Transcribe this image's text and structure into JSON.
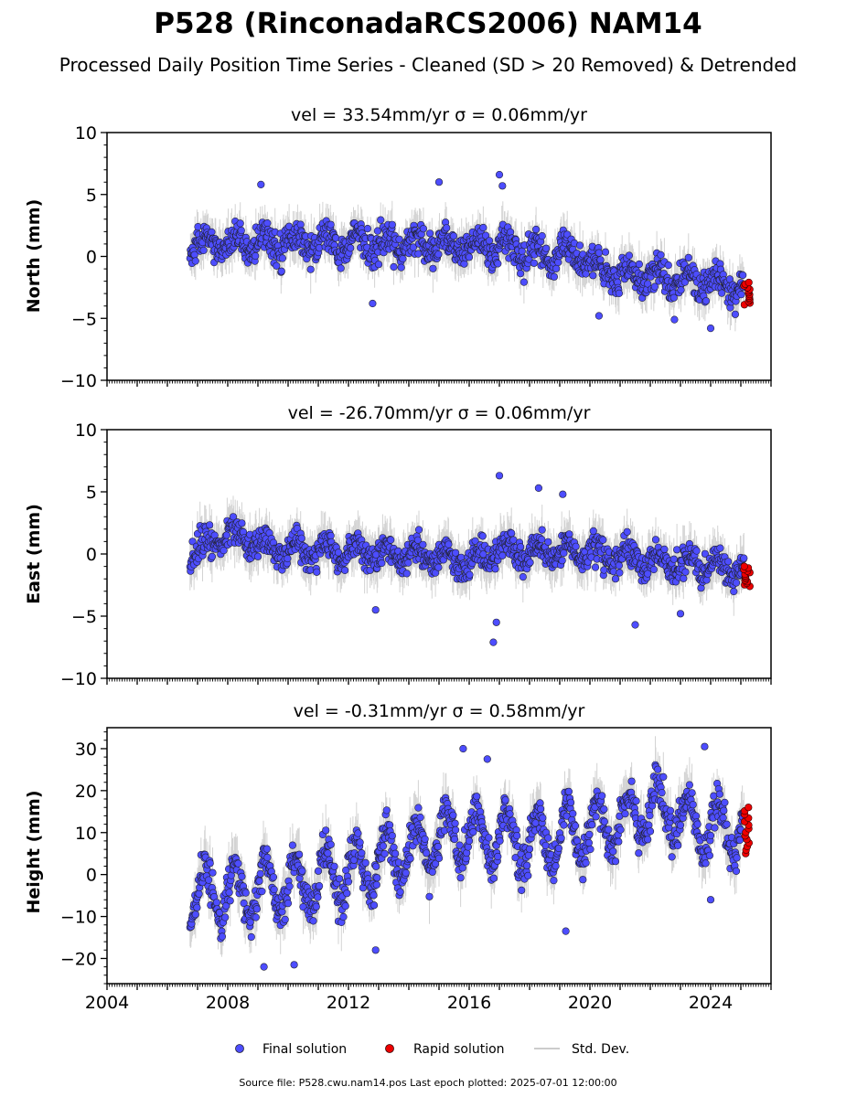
{
  "title": "P528 (RinconadaRCS2006) NAM14",
  "subtitle": "Processed Daily Position Time Series - Cleaned (SD > 20 Removed) & Detrended",
  "footer": "Source file: P528.cwu.nam14.pos  Last epoch plotted: 2025-07-01 12:00:00",
  "legend": {
    "final": "Final solution",
    "rapid": "Rapid solution",
    "sd": "Std. Dev."
  },
  "colors": {
    "final": "#4d4dff",
    "rapid": "#ee0000",
    "sd": "#808080",
    "marker_edge": "#222233"
  },
  "chart_data": [
    {
      "type": "scatter",
      "id": "north",
      "title": "vel = 33.54mm/yr   σ = 0.06mm/yr",
      "ylabel": "North (mm)",
      "xlim": [
        2004,
        2026
      ],
      "ylim": [
        -10,
        10
      ],
      "yticks": [
        -10,
        -5,
        0,
        5,
        10
      ],
      "xticks": [],
      "x_start": 2006.75,
      "x_end": 2025.3,
      "trend": [
        [
          2006.75,
          1.0
        ],
        [
          2012.0,
          1.1
        ],
        [
          2016.0,
          0.8
        ],
        [
          2019.8,
          0.0
        ],
        [
          2020.2,
          -1.2
        ],
        [
          2023.0,
          -1.8
        ],
        [
          2025.3,
          -2.6
        ]
      ],
      "seasonal_amp": 0.7,
      "noise": 0.9,
      "sd": 1.4,
      "outliers": [
        [
          2009.1,
          5.8
        ],
        [
          2015.0,
          6.0
        ],
        [
          2017.0,
          6.6
        ],
        [
          2017.1,
          5.7
        ],
        [
          2012.8,
          -3.8
        ],
        [
          2020.3,
          -4.8
        ],
        [
          2022.8,
          -5.1
        ],
        [
          2024.0,
          -5.8
        ]
      ],
      "rapid": {
        "x_start": 2025.1,
        "x_end": 2025.3,
        "y_min": -3.9,
        "y_max": -2.1
      }
    },
    {
      "type": "scatter",
      "id": "east",
      "title": "vel = -26.70mm/yr   σ = 0.06mm/yr",
      "ylabel": "East (mm)",
      "xlim": [
        2004,
        2026
      ],
      "ylim": [
        -10,
        10
      ],
      "yticks": [
        -10,
        -5,
        0,
        5,
        10
      ],
      "xticks": [],
      "x_start": 2006.75,
      "x_end": 2025.3,
      "trend": [
        [
          2006.75,
          0.0
        ],
        [
          2008.0,
          1.5
        ],
        [
          2010.0,
          0.3
        ],
        [
          2014.0,
          0.0
        ],
        [
          2016.0,
          -0.6
        ],
        [
          2017.3,
          0.4
        ],
        [
          2020.0,
          0.0
        ],
        [
          2025.3,
          -1.3
        ]
      ],
      "seasonal_amp": 0.7,
      "noise": 0.8,
      "sd": 1.5,
      "outliers": [
        [
          2017.0,
          6.3
        ],
        [
          2018.3,
          5.3
        ],
        [
          2019.1,
          4.8
        ],
        [
          2016.8,
          -7.1
        ],
        [
          2016.9,
          -5.5
        ],
        [
          2012.9,
          -4.5
        ],
        [
          2021.5,
          -5.7
        ],
        [
          2023.0,
          -4.8
        ]
      ],
      "rapid": {
        "x_start": 2025.1,
        "x_end": 2025.3,
        "y_min": -2.6,
        "y_max": -1.0
      }
    },
    {
      "type": "scatter",
      "id": "height",
      "title": "vel = -0.31mm/yr   σ = 0.58mm/yr",
      "ylabel": "Height (mm)",
      "xlim": [
        2004,
        2026
      ],
      "ylim": [
        -26,
        35
      ],
      "yticks": [
        -20,
        -10,
        0,
        10,
        20,
        30
      ],
      "xticks": [
        2004,
        2008,
        2012,
        2016,
        2020,
        2024
      ],
      "x_start": 2006.75,
      "x_end": 2025.3,
      "trend": [
        [
          2006.75,
          -5.0
        ],
        [
          2010.0,
          -3.0
        ],
        [
          2013.0,
          3.0
        ],
        [
          2015.5,
          10.0
        ],
        [
          2018.0,
          8.0
        ],
        [
          2020.0,
          11.0
        ],
        [
          2022.5,
          16.0
        ],
        [
          2023.5,
          11.0
        ],
        [
          2025.3,
          12.0
        ]
      ],
      "seasonal_amp": 6.5,
      "noise": 3.2,
      "sd": 5.0,
      "outliers": [
        [
          2015.8,
          30.0
        ],
        [
          2016.6,
          27.5
        ],
        [
          2023.8,
          30.5
        ],
        [
          2012.9,
          -18.0
        ],
        [
          2009.2,
          -22.0
        ],
        [
          2019.2,
          -13.5
        ],
        [
          2010.2,
          -21.5
        ],
        [
          2024.0,
          -6.0
        ]
      ],
      "rapid": {
        "x_start": 2025.1,
        "x_end": 2025.3,
        "y_min": 5.0,
        "y_max": 16.0
      }
    }
  ]
}
